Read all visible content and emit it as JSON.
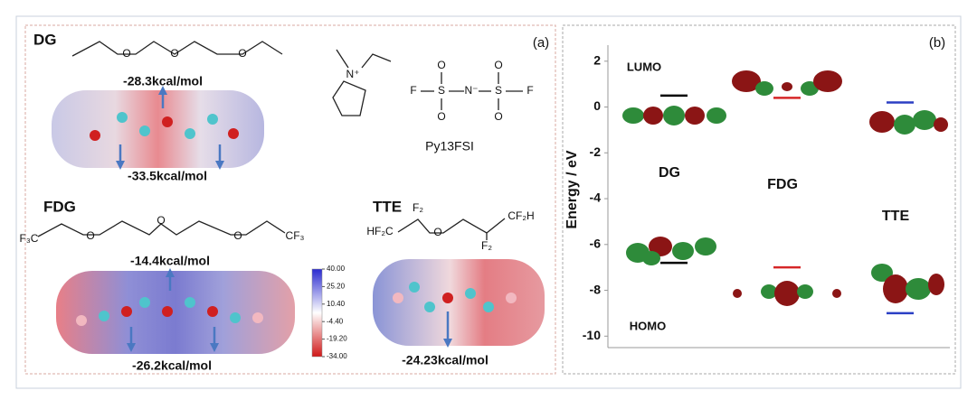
{
  "panel_a": {
    "label": "(a)",
    "dg": {
      "name": "DG",
      "top_value": "-28.3kcal/mol",
      "bottom_value": "-33.5kcal/mol",
      "atoms": [
        "O",
        "O",
        "O"
      ]
    },
    "salt": {
      "name": "Py13FSI",
      "atoms": [
        "N⁺",
        "F",
        "S",
        "N⁻",
        "S",
        "F",
        "O",
        "O",
        "O",
        "O"
      ]
    },
    "fdg": {
      "name": "FDG",
      "top_value": "-14.4kcal/mol",
      "bottom_value": "-26.2kcal/mol",
      "atoms": [
        "F₃C",
        "O",
        "O",
        "O",
        "CF₃"
      ]
    },
    "tte": {
      "name": "TTE",
      "bottom_value": "-24.23kcal/mol",
      "atoms": [
        "F₂",
        "HF₂C",
        "O",
        "CF₂H",
        "F₂"
      ]
    },
    "colorbar": {
      "ticks": [
        {
          "value": 40,
          "label": "40.00"
        },
        {
          "value": 25.2,
          "label": "25.20"
        },
        {
          "value": 10.4,
          "label": "10.40"
        },
        {
          "value": -4.4,
          "label": "-4.40"
        },
        {
          "value": -19.2,
          "label": "-19.20"
        },
        {
          "value": -34,
          "label": "-34.00"
        }
      ]
    }
  },
  "chart_data": {
    "type": "energy-level",
    "label": "(b)",
    "y_label": "Energy / eV",
    "categories": [
      "LUMO",
      "HOMO"
    ],
    "series": [
      {
        "name": "DG",
        "color": "#000000",
        "values": [
          0.5,
          -6.8
        ]
      },
      {
        "name": "FDG",
        "color": "#d62728",
        "values": [
          0.4,
          -7.0
        ]
      },
      {
        "name": "TTE",
        "color": "#2b3fc4",
        "values": [
          0.2,
          -9.0
        ]
      }
    ],
    "ylim": [
      -10.5,
      2.7
    ],
    "yticks": [
      2,
      0,
      -2,
      -4,
      -6,
      -8,
      -10
    ]
  }
}
